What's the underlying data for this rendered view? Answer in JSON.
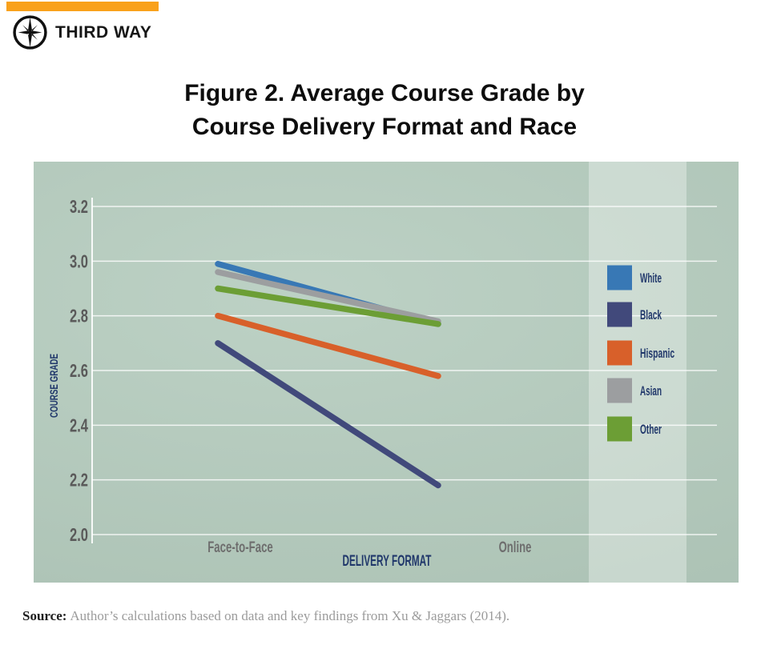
{
  "brand": {
    "logo_text": "THIRD WAY",
    "accent_color": "#F9A11B"
  },
  "title": {
    "line1": "Figure 2. Average Course Grade by",
    "line2": "Course Delivery Format and Race"
  },
  "chart_data": {
    "type": "line",
    "title": "Figure 2. Average Course Grade by Course Delivery Format and Race",
    "categories": [
      "Face-to-Face",
      "Online"
    ],
    "series": [
      {
        "name": "White",
        "color": "#3878B5",
        "values": [
          2.99,
          2.77
        ]
      },
      {
        "name": "Black",
        "color": "#41497B",
        "values": [
          2.7,
          2.18
        ]
      },
      {
        "name": "Hispanic",
        "color": "#D8602A",
        "values": [
          2.8,
          2.58
        ]
      },
      {
        "name": "Asian",
        "color": "#9C9EA0",
        "values": [
          2.96,
          2.78
        ]
      },
      {
        "name": "Other",
        "color": "#6C9E35",
        "values": [
          2.9,
          2.77
        ]
      }
    ],
    "xlabel": "DELIVERY FORMAT",
    "ylabel": "COURSE GRADE",
    "ylim": [
      2.0,
      3.2
    ],
    "yticks": [
      "3.2",
      "3.0",
      "2.8",
      "2.6",
      "2.4",
      "2.2",
      "2.0"
    ],
    "grid": true,
    "legend_position": "right",
    "colors": {
      "panel_bg": "#B5CCBE",
      "legend_band": "rgba(255,255,255,0.33)",
      "gridline": "rgba(255,255,255,0.8)",
      "axis_line": "rgba(255,255,255,0.9)",
      "tick_label": "#5A5A5A",
      "category_label": "#6E6E6E",
      "axis_title": "#21386B",
      "legend_label": "#21386B"
    }
  },
  "footer": {
    "source_label": "Source:",
    "source_text": "Author’s calculations based on data and key findings from Xu & Jaggars (2014)."
  }
}
